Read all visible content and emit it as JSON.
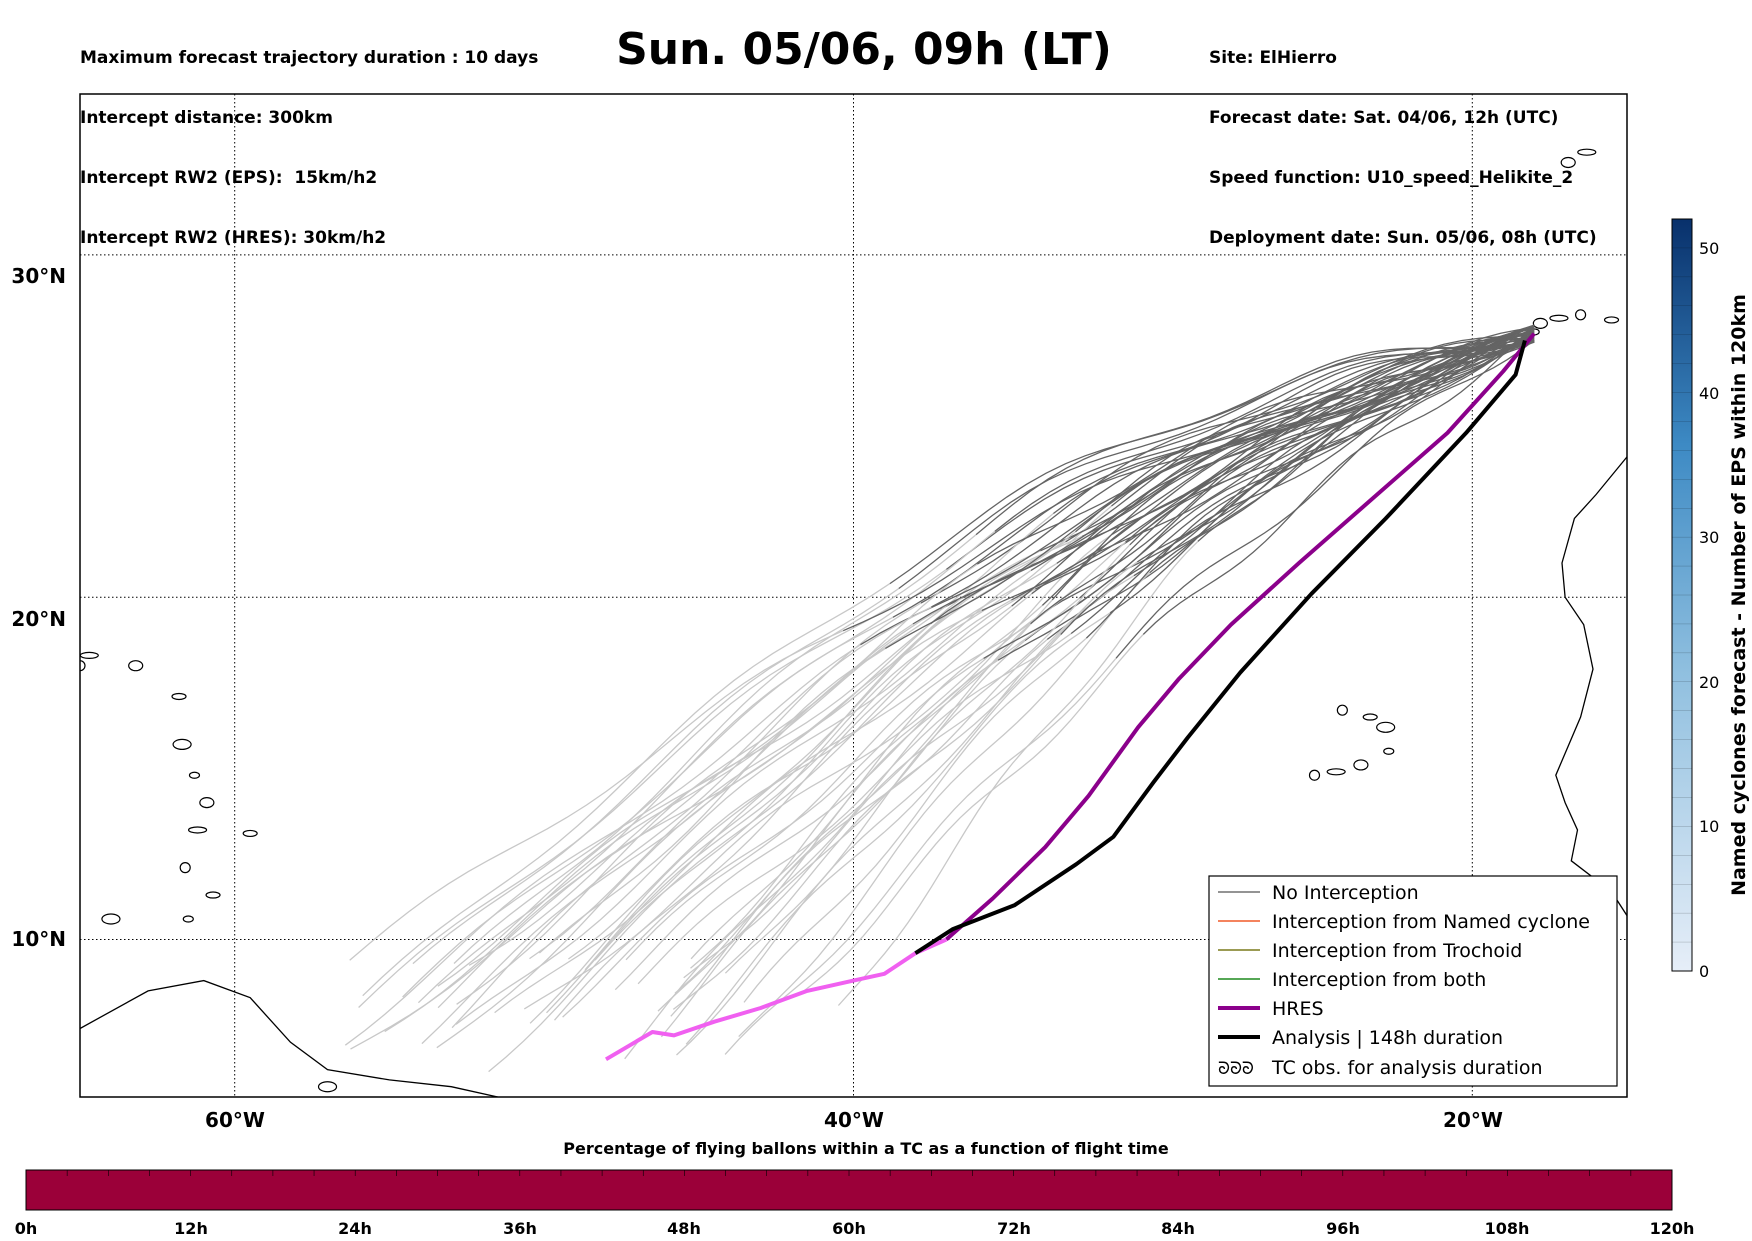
{
  "header": {
    "left_lines": [
      "Maximum forecast trajectory duration : 10 days",
      "Intercept distance: 300km",
      "Intercept RW2 (EPS):  15km/h2",
      "Intercept RW2 (HRES): 30km/h2"
    ],
    "title": "Sun. 05/06, 09h (LT)",
    "right_lines": [
      "Site: ElHierro",
      "Forecast date: Sat. 04/06, 12h (UTC)",
      "Speed function: U10_speed_Helikite_2",
      "Deployment date: Sun. 05/06, 08h (UTC)"
    ]
  },
  "map": {
    "lon_ticks": [
      "60°W",
      "40°W",
      "20°W"
    ],
    "lat_ticks": [
      "30°N",
      "20°N",
      "10°N"
    ],
    "lon_range": [
      -65,
      -15
    ],
    "lat_range": [
      5.4,
      34.7
    ],
    "site": {
      "lon": -18.0,
      "lat": 27.7
    }
  },
  "colorbar": {
    "label": "Named cyclones forecast - Number of EPS within 120km",
    "ticks": [
      "0",
      "10",
      "20",
      "30",
      "40",
      "50"
    ],
    "range": [
      0,
      52
    ],
    "cmap_low": "#e6eef8",
    "cmap_high": "#08306b"
  },
  "legend": {
    "items": [
      {
        "label": "No Interception",
        "color": "#707070",
        "style": "thin"
      },
      {
        "label": "Interception from Named cyclone",
        "color": "#f05a28",
        "style": "thin"
      },
      {
        "label": "Interception from Trochoid",
        "color": "#7a7a1a",
        "style": "thin"
      },
      {
        "label": "Interception from both",
        "color": "#1f8a1f",
        "style": "thin"
      },
      {
        "label": "HRES",
        "color": "#8b008b",
        "style": "thick"
      },
      {
        "label": "Analysis | 148h duration",
        "color": "#000000",
        "style": "thick"
      },
      {
        "label": "TC obs. for analysis duration",
        "color": "#000000",
        "style": "symbol"
      }
    ],
    "symbol_text": "ᘐᘐᘐ"
  },
  "time_bar": {
    "title": "Percentage of flying ballons within a TC as a function of flight time",
    "ticks": [
      "0h",
      "12h",
      "24h",
      "36h",
      "48h",
      "60h",
      "72h",
      "84h",
      "96h",
      "108h",
      "120h"
    ],
    "fill_color": "#9b0039",
    "percentages": [
      0,
      0,
      0,
      0,
      0,
      0,
      0,
      0,
      0,
      0,
      0
    ]
  },
  "colors": {
    "eps_early": "#c8c8c8",
    "eps_late": "#646464",
    "hres": "#8b008b",
    "hres_early": "#f060f0",
    "analysis": "#000000"
  },
  "tracks": {
    "hres": [
      [
        -18.0,
        27.7
      ],
      [
        -19.0,
        26.6
      ],
      [
        -20.8,
        24.8
      ],
      [
        -23.2,
        22.9
      ],
      [
        -25.6,
        21.0
      ],
      [
        -27.8,
        19.2
      ],
      [
        -29.5,
        17.6
      ],
      [
        -30.8,
        16.2
      ],
      [
        -32.4,
        14.2
      ],
      [
        -33.8,
        12.7
      ],
      [
        -35.5,
        11.2
      ],
      [
        -37.0,
        10.0
      ],
      [
        -38.0,
        9.6
      ],
      [
        -39.0,
        9.0
      ],
      [
        -40.0,
        8.8
      ],
      [
        -41.5,
        8.5
      ],
      [
        -43.0,
        8.0
      ],
      [
        -44.5,
        7.6
      ],
      [
        -45.8,
        7.2
      ],
      [
        -46.5,
        7.3
      ],
      [
        -48.0,
        6.5
      ]
    ],
    "hres_split_lon": -37.0,
    "analysis": [
      [
        -18.3,
        27.5
      ],
      [
        -18.6,
        26.5
      ],
      [
        -20.2,
        24.8
      ],
      [
        -22.8,
        22.3
      ],
      [
        -25.2,
        20.1
      ],
      [
        -27.5,
        17.8
      ],
      [
        -29.2,
        15.9
      ],
      [
        -30.3,
        14.6
      ],
      [
        -31.6,
        13.0
      ],
      [
        -32.8,
        12.2
      ],
      [
        -34.8,
        11.0
      ],
      [
        -36.8,
        10.3
      ],
      [
        -38.0,
        9.6
      ]
    ],
    "eps_count": 50
  },
  "coast": {
    "canary": [
      [
        -18.0,
        27.75
      ],
      [
        -17.8,
        28.0
      ],
      [
        -17.2,
        28.15
      ],
      [
        -16.5,
        28.25
      ],
      [
        -15.5,
        28.1
      ],
      [
        -14.3,
        28.4
      ],
      [
        -13.6,
        28.9
      ],
      [
        -16.9,
        32.7
      ],
      [
        -16.3,
        33.0
      ]
    ],
    "africa": [
      [
        -15.0,
        24.1
      ],
      [
        -16.0,
        23.0
      ],
      [
        -16.7,
        22.3
      ],
      [
        -17.1,
        21.0
      ],
      [
        -17.0,
        20.0
      ],
      [
        -16.4,
        19.2
      ],
      [
        -16.1,
        17.9
      ],
      [
        -16.5,
        16.5
      ],
      [
        -17.3,
        14.8
      ],
      [
        -17.0,
        14.0
      ],
      [
        -16.6,
        13.2
      ],
      [
        -16.8,
        12.3
      ],
      [
        -15.5,
        11.4
      ],
      [
        -15.0,
        10.7
      ]
    ],
    "cape_verde": [
      [
        -24.2,
        16.7
      ],
      [
        -23.3,
        16.5
      ],
      [
        -22.8,
        16.2
      ],
      [
        -22.7,
        15.5
      ],
      [
        -23.6,
        15.1
      ],
      [
        -24.4,
        14.9
      ],
      [
        -25.1,
        14.8
      ]
    ],
    "south_america": [
      [
        -65.0,
        7.4
      ],
      [
        -62.8,
        8.5
      ],
      [
        -61.0,
        8.8
      ],
      [
        -59.5,
        8.3
      ],
      [
        -58.2,
        7.0
      ],
      [
        -57.0,
        6.2
      ],
      [
        -55.0,
        5.9
      ],
      [
        -53.0,
        5.7
      ],
      [
        -51.5,
        5.4
      ]
    ],
    "caribbean": [
      [
        -61.8,
        17.1
      ],
      [
        -61.7,
        15.7
      ],
      [
        -61.3,
        14.8
      ],
      [
        -60.9,
        14.0
      ],
      [
        -61.2,
        13.2
      ],
      [
        -61.6,
        12.1
      ],
      [
        -60.7,
        11.3
      ],
      [
        -64.0,
        10.6
      ],
      [
        -61.5,
        10.6
      ],
      [
        -63.2,
        18.0
      ],
      [
        -64.7,
        18.3
      ],
      [
        -65.0,
        18.0
      ],
      [
        -59.5,
        13.1
      ],
      [
        -57.0,
        5.7
      ]
    ]
  }
}
